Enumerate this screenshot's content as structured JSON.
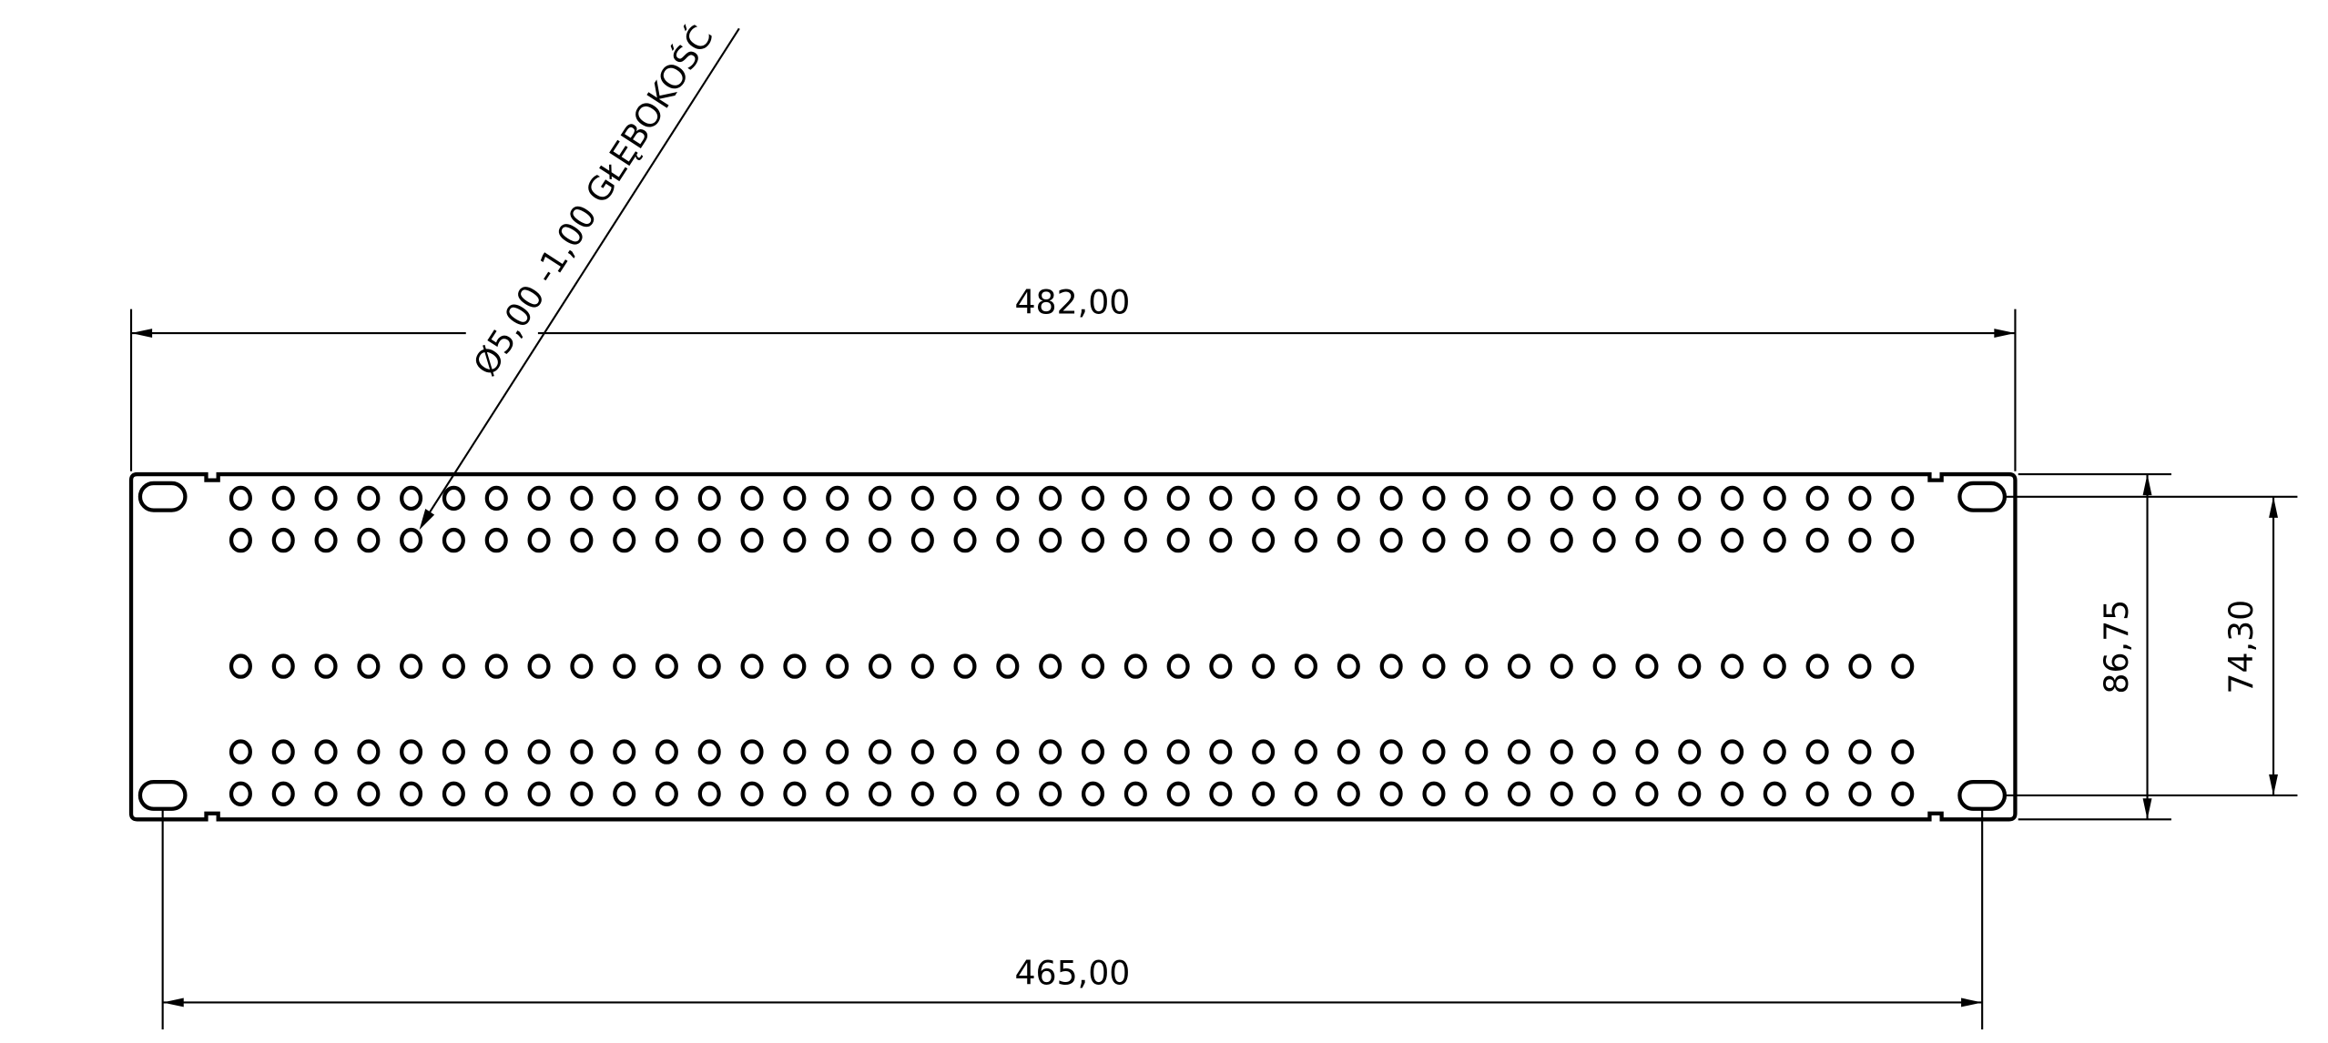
{
  "drawing": {
    "stroke_color": "#000000",
    "background": "#ffffff",
    "hole_callout": "Ø5,00 -1,00 GŁĘBOKOŚĆ",
    "dimensions": {
      "overall_width": "482,00",
      "mounting_hole_spacing": "465,00",
      "overall_height": "86,75",
      "mounting_hole_vertical_spacing": "74,30"
    },
    "hole_grid": {
      "columns": 40,
      "rows": 5
    }
  }
}
